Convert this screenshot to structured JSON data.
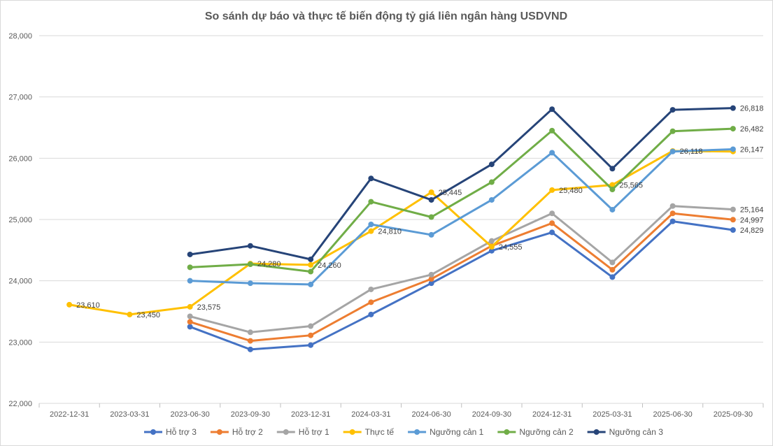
{
  "chart_data": {
    "type": "line",
    "title": "So sánh dự báo và thực tế biến động tỷ giá liên ngân hàng USDVND",
    "xlabel": "",
    "ylabel": "",
    "ylim": [
      22000,
      28000
    ],
    "yticks": [
      22000,
      23000,
      24000,
      25000,
      26000,
      27000,
      28000
    ],
    "ytick_labels": [
      "22,000",
      "23,000",
      "24,000",
      "25,000",
      "26,000",
      "27,000",
      "28,000"
    ],
    "grid": true,
    "legend_position": "bottom",
    "categories": [
      "2022-12-31",
      "2023-03-31",
      "2023-06-30",
      "2023-09-30",
      "2023-12-31",
      "2024-03-31",
      "2024-06-30",
      "2024-09-30",
      "2024-12-31",
      "2025-03-31",
      "2025-06-30",
      "2025-09-30"
    ],
    "series": [
      {
        "name": "Hỗ trợ 3",
        "color": "#4472c4",
        "values": [
          null,
          null,
          23250,
          22880,
          22950,
          23450,
          23960,
          24490,
          24790,
          24060,
          24970,
          24829
        ],
        "labels": [
          null,
          null,
          null,
          null,
          null,
          null,
          null,
          null,
          null,
          null,
          null,
          "24,829"
        ]
      },
      {
        "name": "Hỗ trợ 2",
        "color": "#ed7d31",
        "values": [
          null,
          null,
          23330,
          23020,
          23110,
          23650,
          24030,
          24570,
          24940,
          24180,
          25100,
          24997
        ],
        "labels": [
          null,
          null,
          null,
          null,
          null,
          null,
          null,
          null,
          null,
          null,
          null,
          "24,997"
        ]
      },
      {
        "name": "Hỗ trợ 1",
        "color": "#a5a5a5",
        "values": [
          null,
          null,
          23420,
          23160,
          23260,
          23860,
          24100,
          24650,
          25100,
          24300,
          25220,
          25164
        ],
        "labels": [
          null,
          null,
          null,
          null,
          null,
          null,
          null,
          null,
          null,
          null,
          null,
          "25,164"
        ]
      },
      {
        "name": "Thực tế",
        "color": "#ffc000",
        "values": [
          23610,
          23450,
          23575,
          24280,
          24260,
          24810,
          25445,
          24555,
          25480,
          25565,
          26118,
          26110
        ],
        "labels": [
          "23,610",
          "23,450",
          "23,575",
          "24,280",
          "24,260",
          "24,810",
          "25,445",
          "24,555",
          "25,480",
          "25,565",
          "26,118",
          null
        ]
      },
      {
        "name": "Ngưỡng cản 1",
        "color": "#5b9bd5",
        "values": [
          null,
          null,
          24000,
          23960,
          23940,
          24920,
          24750,
          25320,
          26090,
          25160,
          26110,
          26147
        ],
        "labels": [
          null,
          null,
          null,
          null,
          null,
          null,
          null,
          null,
          null,
          null,
          null,
          "26,147"
        ]
      },
      {
        "name": "Ngưỡng cản 2",
        "color": "#70ad47",
        "values": [
          null,
          null,
          24220,
          24270,
          24150,
          25290,
          25040,
          25610,
          26450,
          25490,
          26440,
          26482
        ],
        "labels": [
          null,
          null,
          null,
          null,
          null,
          null,
          null,
          null,
          null,
          null,
          null,
          "26,482"
        ]
      },
      {
        "name": "Ngưỡng cản 3",
        "color": "#264478",
        "values": [
          null,
          null,
          24430,
          24570,
          24350,
          25670,
          25320,
          25900,
          26800,
          25830,
          26790,
          26818
        ],
        "labels": [
          null,
          null,
          null,
          null,
          null,
          null,
          null,
          null,
          null,
          null,
          null,
          "26,818"
        ]
      }
    ]
  }
}
